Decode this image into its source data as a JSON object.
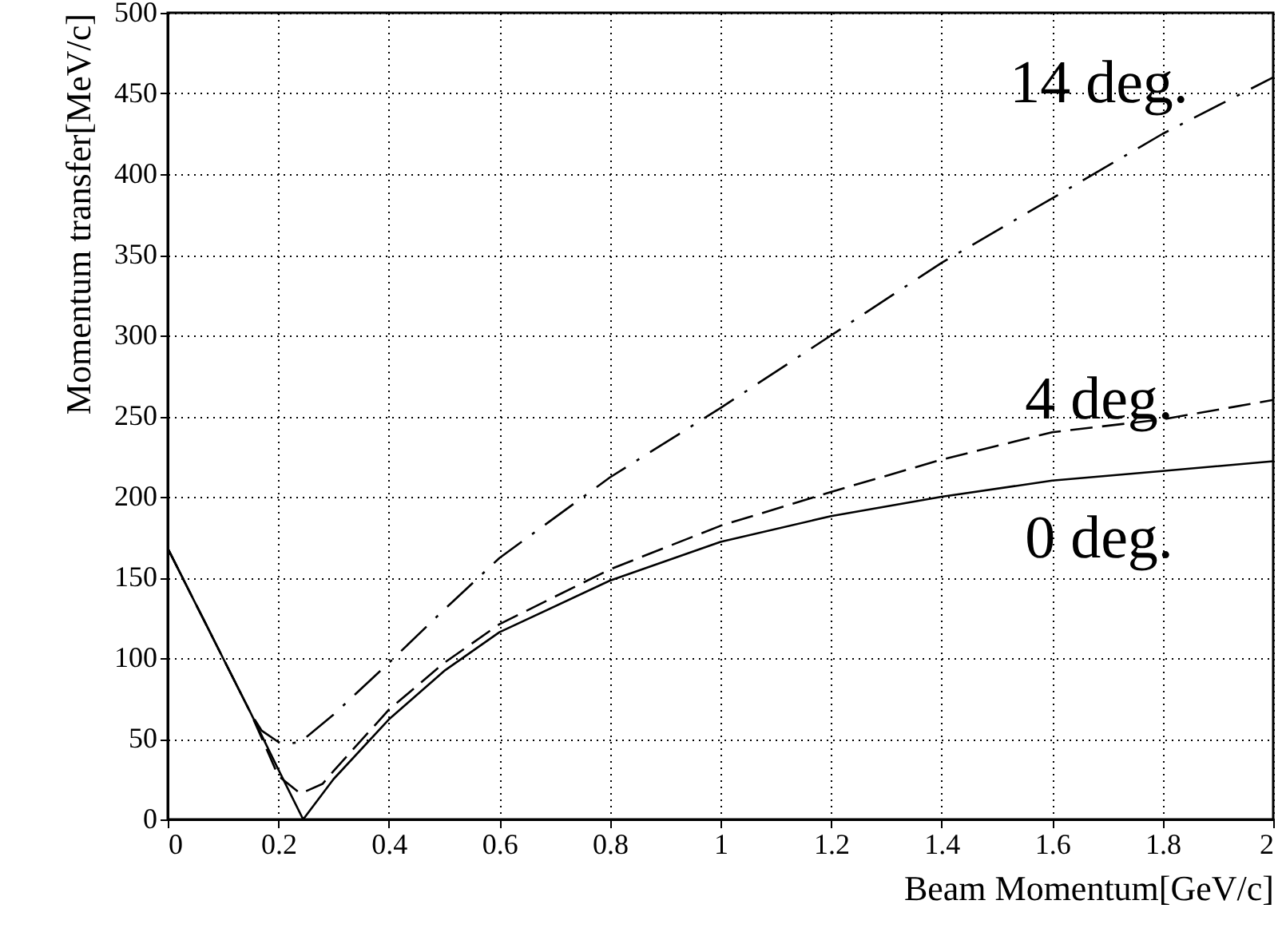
{
  "chart_data": {
    "type": "line",
    "xlabel": "Beam Momentum[GeV/c]",
    "ylabel": "Momentum transfer[MeV/c]",
    "xlim": [
      0,
      2
    ],
    "xticks": [
      0,
      0.2,
      0.4,
      0.6,
      0.8,
      1,
      1.2,
      1.4,
      1.6,
      1.8,
      2
    ],
    "ylim": [
      0,
      500
    ],
    "yticks": [
      0,
      50,
      100,
      150,
      200,
      250,
      300,
      350,
      400,
      450,
      500
    ],
    "grid": true,
    "marker": "none",
    "series": [
      {
        "color": "#000000",
        "line_style": "solid",
        "x": [
          0,
          0.05,
          0.1,
          0.15,
          0.2,
          0.245,
          0.3,
          0.4,
          0.5,
          0.6,
          0.8,
          1,
          1.2,
          1.4,
          1.6,
          1.8,
          2
        ],
        "values": [
          168,
          134,
          100,
          66,
          31,
          0,
          25,
          62,
          92,
          116,
          148,
          172,
          188,
          200,
          210,
          216,
          222
        ]
      },
      {
        "color": "#000000",
        "line_style": "dashed",
        "x": [
          0,
          0.05,
          0.1,
          0.15,
          0.2,
          0.24,
          0.28,
          0.3,
          0.4,
          0.5,
          0.6,
          0.8,
          1,
          1.2,
          1.4,
          1.6,
          1.8,
          2
        ],
        "values": [
          168,
          134,
          100,
          66,
          27,
          16,
          22,
          30,
          68,
          97,
          121,
          155,
          182,
          203,
          223,
          240,
          248,
          260
        ]
      },
      {
        "color": "#000000",
        "line_style": "dashdot",
        "x": [
          0,
          0.05,
          0.1,
          0.15,
          0.17,
          0.2,
          0.22,
          0.24,
          0.3,
          0.4,
          0.5,
          0.6,
          0.8,
          1,
          1.2,
          1.4,
          1.6,
          1.8,
          2
        ],
        "values": [
          168,
          134,
          100,
          66,
          55,
          48,
          47,
          48,
          65,
          97,
          130,
          162,
          212,
          255,
          300,
          345,
          385,
          425,
          460
        ]
      }
    ],
    "annotations": [
      "14 deg.",
      "4 deg.",
      "0 deg."
    ]
  }
}
